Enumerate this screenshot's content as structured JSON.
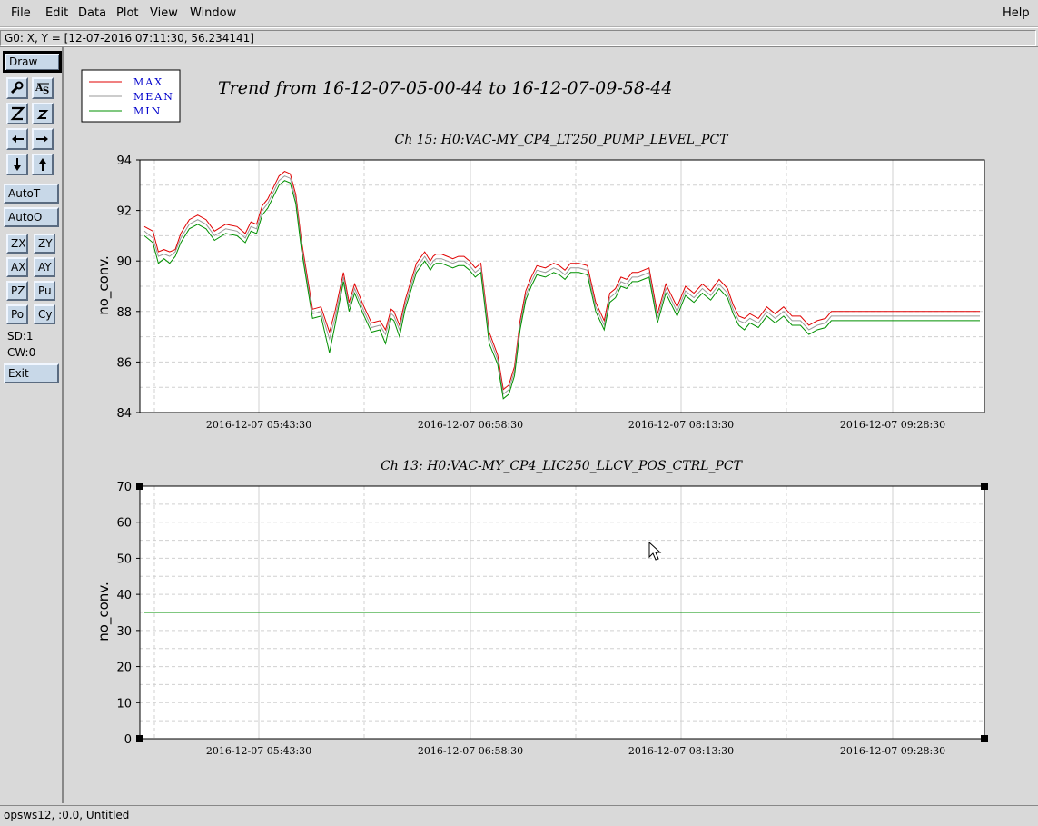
{
  "menu": {
    "file": "File",
    "edit": "Edit",
    "data": "Data",
    "plot": "Plot",
    "view": "View",
    "window": "Window",
    "help": "Help"
  },
  "coord_readout": "G0: X, Y = [12-07-2016 07:11:30, 56.234141]",
  "toolbar": {
    "draw": "Draw",
    "autot": "AutoT",
    "autoo": "AutoO",
    "zx": "ZX",
    "zy": "ZY",
    "ax": "AX",
    "ay": "AY",
    "pz": "PZ",
    "pu": "Pu",
    "po": "Po",
    "cy": "Cy",
    "sd": "SD:1",
    "cw": "CW:0",
    "exit": "Exit",
    "icons": [
      "magnify-icon",
      "autoscale-icon",
      "zoom-in-icon",
      "zoom-out-icon",
      "arrow-left-icon",
      "arrow-right-icon",
      "arrow-down-icon",
      "arrow-up-icon"
    ]
  },
  "status": "opsws12, :0.0, Untitled",
  "colors": {
    "max": "#e00000",
    "mean": "#9a9a9a",
    "min": "#009000",
    "legend_text": "#0000cc",
    "grid": "#d0d0d0"
  },
  "legend": [
    "MAX",
    "MEAN",
    "MIN"
  ],
  "trend_title": "Trend from 16-12-07-05-00-44 to 16-12-07-09-58-44",
  "chart_data": [
    {
      "type": "line",
      "title": "Ch 15: H0:VAC-MY_CP4_LT250_PUMP_LEVEL_PCT",
      "ylabel": "no_conv.",
      "ylim": [
        84,
        95
      ],
      "yticks": [
        "84",
        "86",
        "88",
        "90",
        "92",
        "94"
      ],
      "xticks": [
        "2016-12-07 05:43:30",
        "2016-12-07 06:58:30",
        "2016-12-07 08:13:30",
        "2016-12-07 09:28:30"
      ],
      "x_range_minutes": [
        0,
        298
      ],
      "x": [
        0,
        3,
        5,
        7,
        9,
        11,
        13,
        16,
        19,
        22,
        25,
        29,
        33,
        36,
        38,
        40,
        42,
        44,
        46,
        48,
        50,
        52,
        54,
        56,
        60,
        63,
        66,
        68,
        71,
        73,
        75,
        78,
        81,
        84,
        86,
        88,
        89,
        91,
        93,
        95,
        97,
        100,
        102,
        103,
        104,
        106,
        108,
        110,
        112,
        114,
        116,
        118,
        120,
        123,
        126,
        128,
        130,
        132,
        134,
        136,
        138,
        140,
        143,
        146,
        148,
        150,
        152,
        155,
        158,
        161,
        164,
        166,
        168,
        170,
        172,
        174,
        176,
        178,
        180,
        183,
        186,
        190,
        193,
        196,
        199,
        202,
        205,
        208,
        210,
        212,
        214,
        216,
        219,
        222,
        225,
        228,
        231,
        234,
        237,
        240,
        243,
        245,
        247,
        249,
        252,
        255,
        258,
        261,
        264,
        267,
        270,
        273,
        276,
        279,
        282,
        285,
        288,
        291,
        294,
        298
      ],
      "series": [
        {
          "name": "MAX",
          "values": [
            92.1,
            91.9,
            91.0,
            91.1,
            91.0,
            91.1,
            91.8,
            92.4,
            92.6,
            92.4,
            91.9,
            92.2,
            92.1,
            91.8,
            92.3,
            92.2,
            93.0,
            93.3,
            93.8,
            94.3,
            94.5,
            94.4,
            93.5,
            91.5,
            88.5,
            88.6,
            87.5,
            88.4,
            90.1,
            88.8,
            89.6,
            88.7,
            87.9,
            88.0,
            87.6,
            88.5,
            88.4,
            87.8,
            88.9,
            89.7,
            90.5,
            91.0,
            90.6,
            90.8,
            90.9,
            90.9,
            90.8,
            90.7,
            90.8,
            90.8,
            90.6,
            90.3,
            90.5,
            87.5,
            86.5,
            85.0,
            85.2,
            86.0,
            88.0,
            89.3,
            89.9,
            90.4,
            90.3,
            90.5,
            90.4,
            90.2,
            90.5,
            90.5,
            90.4,
            88.8,
            88.0,
            89.2,
            89.4,
            89.9,
            89.8,
            90.1,
            90.1,
            90.2,
            90.3,
            88.3,
            89.6,
            88.6,
            89.5,
            89.2,
            89.6,
            89.3,
            89.8,
            89.4,
            88.7,
            88.2,
            88.1,
            88.3,
            88.1,
            88.6,
            88.3,
            88.6,
            88.2,
            88.2,
            87.8,
            88.0,
            88.1,
            88.4,
            88.4,
            88.4,
            88.4,
            88.4,
            88.4,
            88.4,
            88.4,
            88.4,
            88.4,
            88.4,
            88.4,
            88.4,
            88.4,
            88.4,
            88.4,
            88.4,
            88.4,
            88.4
          ]
        },
        {
          "name": "MEAN",
          "values": [
            91.9,
            91.6,
            90.8,
            90.9,
            90.8,
            91.0,
            91.6,
            92.2,
            92.4,
            92.2,
            91.7,
            92.0,
            91.9,
            91.6,
            92.1,
            92.0,
            92.8,
            93.1,
            93.6,
            94.1,
            94.3,
            94.2,
            93.3,
            91.3,
            88.3,
            88.4,
            87.2,
            88.1,
            89.9,
            88.6,
            89.4,
            88.5,
            87.7,
            87.8,
            87.4,
            88.3,
            88.2,
            87.6,
            88.7,
            89.5,
            90.3,
            90.8,
            90.4,
            90.6,
            90.7,
            90.7,
            90.6,
            90.5,
            90.6,
            90.6,
            90.4,
            90.1,
            90.3,
            87.3,
            86.3,
            84.8,
            85.0,
            85.8,
            87.8,
            89.1,
            89.7,
            90.2,
            90.1,
            90.3,
            90.2,
            90.0,
            90.3,
            90.3,
            90.2,
            88.6,
            87.8,
            89.0,
            89.2,
            89.7,
            89.6,
            89.9,
            89.9,
            90.0,
            90.1,
            88.1,
            89.4,
            88.4,
            89.3,
            89.0,
            89.4,
            89.1,
            89.6,
            89.2,
            88.5,
            88.0,
            87.9,
            88.1,
            87.9,
            88.4,
            88.1,
            88.4,
            88.0,
            88.0,
            87.6,
            87.8,
            87.9,
            88.2,
            88.2,
            88.2,
            88.2,
            88.2,
            88.2,
            88.2,
            88.2,
            88.2,
            88.2,
            88.2,
            88.2,
            88.2,
            88.2,
            88.2,
            88.2,
            88.2,
            88.2,
            88.2
          ]
        },
        {
          "name": "MIN",
          "values": [
            91.7,
            91.4,
            90.5,
            90.7,
            90.5,
            90.8,
            91.4,
            92.0,
            92.2,
            92.0,
            91.5,
            91.8,
            91.7,
            91.4,
            91.9,
            91.8,
            92.6,
            92.9,
            93.4,
            93.9,
            94.1,
            94.0,
            93.1,
            91.1,
            88.1,
            88.2,
            86.6,
            87.8,
            89.7,
            88.4,
            89.2,
            88.3,
            87.5,
            87.6,
            87.0,
            88.1,
            88.0,
            87.3,
            88.5,
            89.3,
            90.1,
            90.6,
            90.2,
            90.4,
            90.5,
            90.5,
            90.4,
            90.3,
            90.4,
            90.4,
            90.2,
            89.9,
            90.1,
            87.0,
            86.1,
            84.6,
            84.8,
            85.6,
            87.6,
            88.9,
            89.5,
            90.0,
            89.9,
            90.1,
            90.0,
            89.8,
            90.1,
            90.1,
            90.0,
            88.4,
            87.6,
            88.8,
            89.0,
            89.5,
            89.4,
            89.7,
            89.7,
            89.8,
            89.9,
            87.9,
            89.2,
            88.2,
            89.1,
            88.8,
            89.2,
            88.9,
            89.4,
            89.0,
            88.3,
            87.8,
            87.6,
            87.9,
            87.7,
            88.2,
            87.9,
            88.2,
            87.8,
            87.8,
            87.4,
            87.6,
            87.7,
            88.0,
            88.0,
            88.0,
            88.0,
            88.0,
            88.0,
            88.0,
            88.0,
            88.0,
            88.0,
            88.0,
            88.0,
            88.0,
            88.0,
            88.0,
            88.0,
            88.0,
            88.0,
            88.0
          ]
        }
      ]
    },
    {
      "type": "line",
      "title": "Ch 13: H0:VAC-MY_CP4_LIC250_LLCV_POS_CTRL_PCT",
      "ylabel": "no_conv.",
      "ylim": [
        0,
        70
      ],
      "yticks": [
        "0",
        "10",
        "20",
        "30",
        "40",
        "50",
        "60",
        "70"
      ],
      "xticks": [
        "2016-12-07 05:43:30",
        "2016-12-07 06:58:30",
        "2016-12-07 08:13:30",
        "2016-12-07 09:28:30"
      ],
      "x_range_minutes": [
        0,
        298
      ],
      "series": [
        {
          "name": "MIN",
          "x": [
            0,
            298
          ],
          "values": [
            35,
            35
          ]
        }
      ]
    }
  ]
}
